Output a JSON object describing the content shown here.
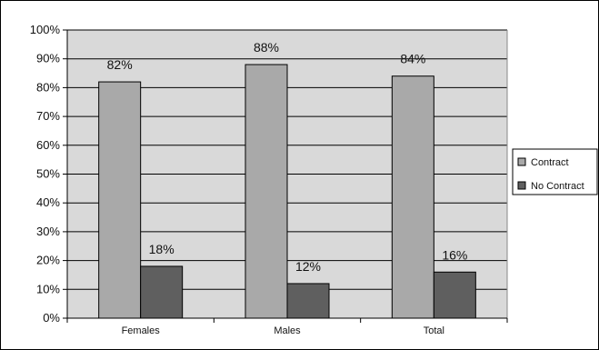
{
  "chart_data": {
    "type": "bar",
    "title": "",
    "xlabel": "",
    "ylabel": "",
    "ylim": [
      0,
      100
    ],
    "y_ticks": [
      "0%",
      "10%",
      "20%",
      "30%",
      "40%",
      "50%",
      "60%",
      "70%",
      "80%",
      "90%",
      "100%"
    ],
    "grid": true,
    "legend_position": "right",
    "categories": [
      "Females",
      "Males",
      "Total"
    ],
    "series": [
      {
        "name": "Contract",
        "values": [
          82,
          88,
          84
        ],
        "labels": [
          "82%",
          "88%",
          "84%"
        ],
        "color": "#a9a9a9"
      },
      {
        "name": "No Contract",
        "values": [
          18,
          12,
          16
        ],
        "labels": [
          "18%",
          "12%",
          "16%"
        ],
        "color": "#5f5f5f"
      }
    ],
    "plot_background": "#d9d9d9"
  }
}
